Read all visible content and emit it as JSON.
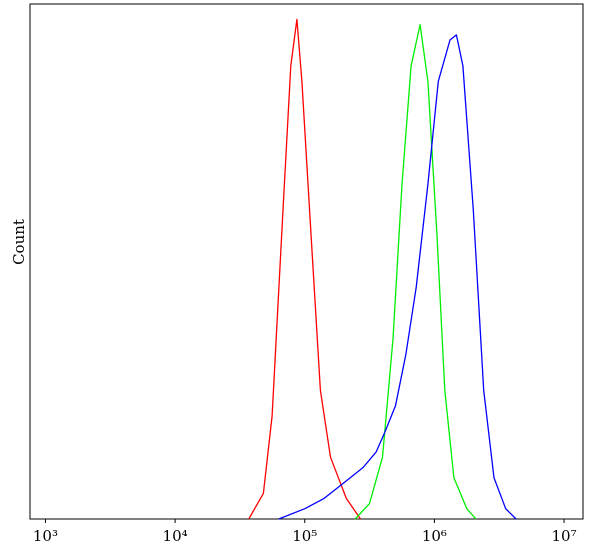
{
  "chart_data": {
    "type": "line",
    "ylabel": "Count",
    "xscale": "log",
    "xlim": [
      760,
      14000000
    ],
    "ylim": [
      0,
      100
    ],
    "xticks": [
      {
        "value": 1000,
        "label": "10³"
      },
      {
        "value": 10000,
        "label": "10⁴"
      },
      {
        "value": 100000,
        "label": "10⁵"
      },
      {
        "value": 1000000,
        "label": "10⁶"
      },
      {
        "value": 10000000,
        "label": "10⁷"
      }
    ],
    "series": [
      {
        "name": "Red",
        "color": "#ff0000",
        "x": [
          37000,
          48000,
          56000,
          68000,
          78000,
          87000,
          95000,
          112000,
          132000,
          158000,
          209000,
          269000
        ],
        "values": [
          0,
          5,
          20,
          60,
          88,
          97,
          85,
          55,
          25,
          12,
          4,
          0
        ]
      },
      {
        "name": "Green",
        "color": "#00ee00",
        "x": [
          245000,
          316000,
          398000,
          479000,
          562000,
          661000,
          776000,
          891000,
          1047000,
          1202000,
          1413000,
          1778000,
          2089000
        ],
        "values": [
          0,
          3,
          12,
          35,
          65,
          88,
          96,
          85,
          55,
          25,
          8,
          2,
          0
        ]
      },
      {
        "name": "Blue",
        "color": "#0000ff",
        "x": [
          63000,
          100000,
          141000,
          200000,
          282000,
          355000,
          417000,
          501000,
          603000,
          724000,
          891000,
          1072000,
          1318000,
          1479000,
          1660000,
          1995000,
          2399000,
          2884000,
          3548000,
          4266000
        ],
        "values": [
          0,
          2,
          4,
          7,
          10,
          13,
          17,
          22,
          32,
          45,
          65,
          85,
          93,
          94,
          88,
          60,
          25,
          8,
          2,
          0
        ]
      }
    ]
  }
}
